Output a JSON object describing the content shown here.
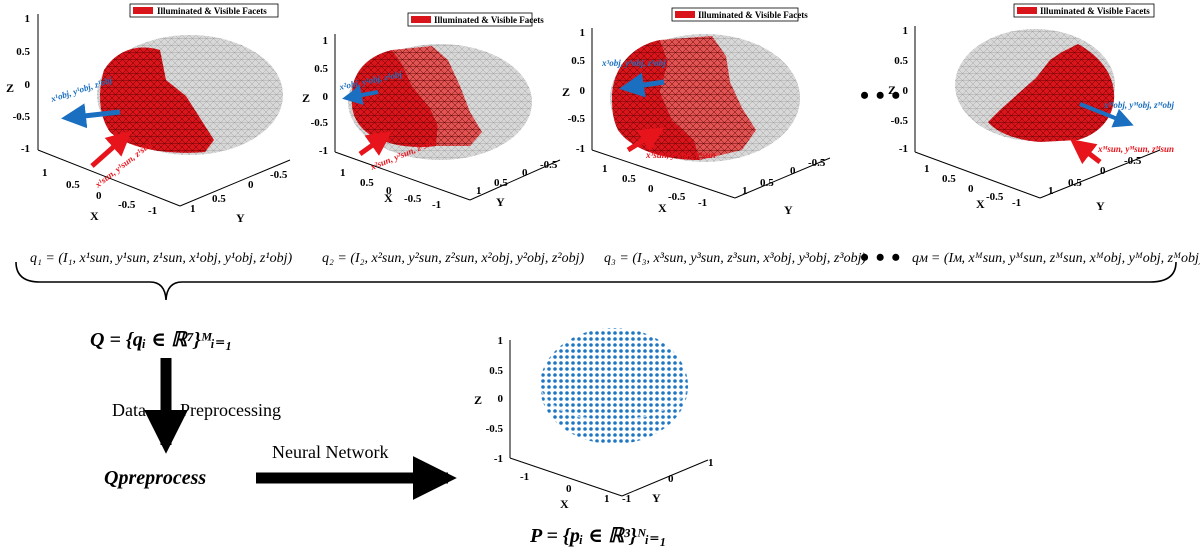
{
  "legend_label": "Illuminated & Visible Facets",
  "colors": {
    "lit": "#d9141b",
    "lit_light": "#e05454",
    "unlit": "#d8d8d8",
    "sun": "#e8141c",
    "obj": "#1a6fc0",
    "points": "#1f77c4"
  },
  "panels": [
    {
      "name": "panel-1",
      "z_ticks": [
        "1",
        "0.5",
        "0",
        "-0.5",
        "-1"
      ],
      "x_ticks": [
        "1",
        "0.5",
        "0",
        "-0.5",
        "-1"
      ],
      "y_ticks": [
        "1",
        "0.5",
        "0",
        "-0.5"
      ],
      "obj_label": "x¹obj, y¹obj, z¹obj",
      "sun_label": "x¹sun, y¹sun, z¹sun"
    },
    {
      "name": "panel-2",
      "z_ticks": [
        "1",
        "0.5",
        "0",
        "-0.5",
        "-1"
      ],
      "x_ticks": [
        "1",
        "0.5",
        "0",
        "-0.5",
        "-1"
      ],
      "y_ticks": [
        "1",
        "0.5",
        "0",
        "-0.5"
      ],
      "obj_label": "x²obj, y²obj, z²obj",
      "sun_label": "x²sun, y²sun, z²sun"
    },
    {
      "name": "panel-3",
      "z_ticks": [
        "1",
        "0.5",
        "0",
        "-0.5",
        "-1"
      ],
      "x_ticks": [
        "1",
        "0.5",
        "0",
        "-0.5",
        "-1"
      ],
      "y_ticks": [
        "1",
        "0.5",
        "0",
        "-0.5"
      ],
      "obj_label": "x³obj, y³obj, z³obj",
      "sun_label": "x³sun, y³sun, z³sun"
    },
    {
      "name": "panel-M",
      "z_ticks": [
        "1",
        "0.5",
        "0",
        "-0.5",
        "-1"
      ],
      "x_ticks": [
        "1",
        "0.5",
        "0",
        "-0.5",
        "-1"
      ],
      "y_ticks": [
        "1",
        "0.5",
        "0",
        "-0.5"
      ],
      "obj_label": "xᴹobj, yᴹobj, zᴹobj",
      "sun_label": "xᴹsun, yᴹsun, zᴹsun"
    }
  ],
  "axis_labels": {
    "x": "X",
    "y": "Y",
    "z": "Z"
  },
  "ellipsis": "• • •",
  "equations": [
    "q₁ = (I₁, x¹sun, y¹sun, z¹sun, x¹obj, y¹obj, z¹obj)",
    "q₂ = (I₂, x²sun, y²sun, z²sun, x²obj, y²obj, z²obj)",
    "q₃ = (I₃, x³sun, y³sun, z³sun, x³obj, y³obj, z³obj)",
    "qᴍ = (Iᴍ, xᴹsun, yᴹsun, zᴹsun, xᴹobj, yᴹobj, zᴹobj)"
  ],
  "Q_set": "Q = {qᵢ ∈ ℝ⁷}ᴹᵢ₌₁",
  "step1_a": "Data",
  "step1_b": "Preprocessing",
  "Q_pre": "Qpreprocess",
  "step2": "Neural   Network",
  "P_set": "P = {pᵢ ∈ ℝ³}ᴺᵢ₌₁",
  "output_plot": {
    "z_ticks": [
      "1",
      "0.5",
      "0",
      "-0.5",
      "-1"
    ],
    "x_ticks": [
      "-1",
      "0",
      "1"
    ],
    "y_ticks": [
      "-1",
      "0",
      "1"
    ]
  }
}
